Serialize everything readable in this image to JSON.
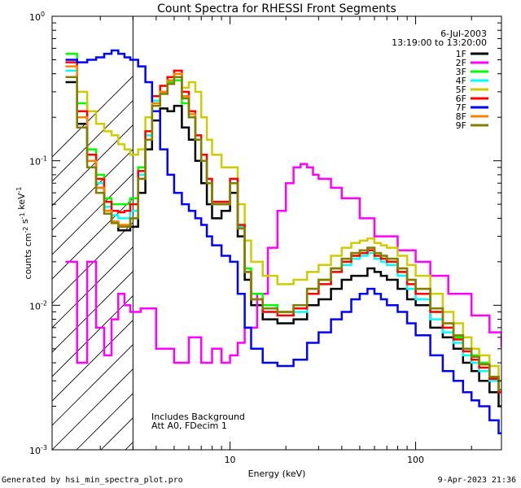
{
  "chart_data": {
    "type": "line",
    "title": "Count Spectra for RHESSI Front Segments",
    "xlabel": "Energy (keV)",
    "ylabel": "counts cm^-2 s^-1 keV^-1",
    "xscale": "log",
    "yscale": "log",
    "xlim": [
      1.1,
      290
    ],
    "ylim": [
      0.001,
      1
    ],
    "x_ticks": [
      {
        "value": 10,
        "label": "10"
      },
      {
        "value": 100,
        "label": "100"
      }
    ],
    "y_ticks": [
      {
        "value": 1,
        "base": "10",
        "exp": "0"
      },
      {
        "value": 0.1,
        "base": "10",
        "exp": "-1"
      },
      {
        "value": 0.01,
        "base": "10",
        "exp": "-2"
      },
      {
        "value": 0.001,
        "base": "10",
        "exp": "-3"
      }
    ],
    "date": "6-Jul-2003",
    "time_range": "13:19:00 to 13:20:00",
    "annotations": [
      "Includes Background",
      "Att A0, FDecim 1"
    ],
    "hatched_region_below_keV": 3,
    "series": [
      {
        "name": "1F",
        "color": "#000000",
        "x": [
          1.3,
          1.5,
          1.7,
          1.9,
          2.1,
          2.3,
          2.5,
          2.7,
          2.9,
          3.2,
          3.5,
          3.8,
          4.2,
          4.6,
          5.0,
          5.5,
          6.0,
          6.5,
          7.0,
          7.5,
          8.0,
          9.0,
          10,
          11,
          12,
          13,
          15,
          18,
          22,
          26,
          30,
          35,
          40,
          45,
          50,
          55,
          60,
          65,
          70,
          80,
          90,
          100,
          120,
          140,
          160,
          180,
          200,
          220,
          250,
          280
        ],
        "y": [
          0.35,
          0.18,
          0.1,
          0.065,
          0.045,
          0.038,
          0.033,
          0.033,
          0.035,
          0.06,
          0.12,
          0.19,
          0.23,
          0.22,
          0.24,
          0.17,
          0.14,
          0.1,
          0.07,
          0.05,
          0.04,
          0.045,
          0.06,
          0.03,
          0.015,
          0.01,
          0.008,
          0.0075,
          0.008,
          0.01,
          0.011,
          0.013,
          0.015,
          0.016,
          0.016,
          0.018,
          0.017,
          0.016,
          0.015,
          0.013,
          0.011,
          0.01,
          0.007,
          0.006,
          0.005,
          0.004,
          0.0035,
          0.003,
          0.0025,
          0.002
        ]
      },
      {
        "name": "2F",
        "color": "#ff00ff",
        "x": [
          1.3,
          1.5,
          1.7,
          1.9,
          2.1,
          2.3,
          2.5,
          2.7,
          2.9,
          3.3,
          4,
          5,
          6,
          7,
          8,
          9,
          10,
          11,
          12,
          14,
          16,
          18,
          20,
          22,
          24,
          26,
          28,
          30,
          35,
          40,
          50,
          60,
          80,
          100,
          120,
          150,
          200,
          250,
          290
        ],
        "y": [
          0.02,
          0.004,
          0.02,
          0.007,
          0.0045,
          0.008,
          0.012,
          0.01,
          0.009,
          0.0095,
          0.005,
          0.004,
          0.006,
          0.004,
          0.005,
          0.004,
          0.0045,
          0.0055,
          0.007,
          0.012,
          0.025,
          0.045,
          0.07,
          0.09,
          0.095,
          0.09,
          0.08,
          0.075,
          0.065,
          0.055,
          0.04,
          0.03,
          0.024,
          0.02,
          0.016,
          0.012,
          0.0085,
          0.0065,
          0.0052
        ]
      },
      {
        "name": "3F",
        "color": "#00ff00",
        "x": [
          1.3,
          1.5,
          1.7,
          1.9,
          2.1,
          2.3,
          2.5,
          2.7,
          2.9,
          3.2,
          3.5,
          3.8,
          4.2,
          4.6,
          5.0,
          5.5,
          6.0,
          6.5,
          7.0,
          7.5,
          8.0,
          9.0,
          10,
          11,
          12,
          13,
          15,
          18,
          22,
          26,
          30,
          35,
          40,
          45,
          50,
          55,
          60,
          65,
          70,
          80,
          90,
          100,
          120,
          140,
          160,
          180,
          200,
          220,
          250,
          280
        ],
        "y": [
          0.55,
          0.25,
          0.12,
          0.08,
          0.055,
          0.05,
          0.05,
          0.05,
          0.055,
          0.09,
          0.15,
          0.26,
          0.3,
          0.35,
          0.36,
          0.25,
          0.2,
          0.14,
          0.1,
          0.07,
          0.05,
          0.05,
          0.07,
          0.035,
          0.018,
          0.012,
          0.01,
          0.009,
          0.01,
          0.013,
          0.015,
          0.018,
          0.02,
          0.022,
          0.023,
          0.024,
          0.022,
          0.021,
          0.02,
          0.017,
          0.014,
          0.012,
          0.009,
          0.007,
          0.006,
          0.005,
          0.0045,
          0.004,
          0.003,
          0.0025
        ]
      },
      {
        "name": "4F",
        "color": "#00ffff",
        "x": [
          1.3,
          1.5,
          1.7,
          1.9,
          2.1,
          2.3,
          2.5,
          2.7,
          2.9,
          3.2,
          3.5,
          3.8,
          4.2,
          4.6,
          5.0,
          5.5,
          6.0,
          6.5,
          7.0,
          7.5,
          8.0,
          9.0,
          10,
          11,
          12,
          13,
          15,
          18,
          22,
          26,
          30,
          35,
          40,
          45,
          50,
          55,
          60,
          65,
          70,
          80,
          90,
          100,
          120,
          140,
          160,
          180,
          200,
          220,
          250,
          280
        ],
        "y": [
          0.42,
          0.2,
          0.1,
          0.07,
          0.048,
          0.042,
          0.04,
          0.04,
          0.045,
          0.08,
          0.15,
          0.26,
          0.3,
          0.34,
          0.38,
          0.27,
          0.2,
          0.14,
          0.1,
          0.07,
          0.05,
          0.05,
          0.07,
          0.035,
          0.017,
          0.011,
          0.009,
          0.0085,
          0.009,
          0.012,
          0.014,
          0.017,
          0.019,
          0.021,
          0.022,
          0.023,
          0.021,
          0.02,
          0.019,
          0.016,
          0.013,
          0.011,
          0.008,
          0.0065,
          0.0055,
          0.0045,
          0.004,
          0.0035,
          0.003,
          0.0025
        ]
      },
      {
        "name": "5F",
        "color": "#cccc00",
        "x": [
          1.3,
          1.5,
          1.7,
          1.9,
          2.1,
          2.3,
          2.5,
          2.7,
          2.9,
          3.2,
          3.5,
          3.8,
          4.2,
          4.6,
          5.0,
          5.5,
          6.0,
          6.5,
          7.0,
          7.5,
          8.0,
          9.0,
          10,
          11,
          12,
          13,
          15,
          18,
          22,
          26,
          30,
          35,
          40,
          45,
          50,
          55,
          60,
          65,
          70,
          80,
          90,
          100,
          120,
          140,
          160,
          180,
          200,
          220,
          250,
          280
        ],
        "y": [
          0.38,
          0.3,
          0.22,
          0.18,
          0.16,
          0.15,
          0.13,
          0.12,
          0.11,
          0.12,
          0.2,
          0.28,
          0.33,
          0.36,
          0.38,
          0.32,
          0.35,
          0.3,
          0.2,
          0.14,
          0.11,
          0.09,
          0.09,
          0.05,
          0.028,
          0.02,
          0.016,
          0.014,
          0.015,
          0.017,
          0.019,
          0.022,
          0.025,
          0.027,
          0.028,
          0.029,
          0.027,
          0.026,
          0.025,
          0.022,
          0.019,
          0.016,
          0.012,
          0.009,
          0.0075,
          0.006,
          0.005,
          0.0045,
          0.0038,
          0.003
        ]
      },
      {
        "name": "6F",
        "color": "#ff0000",
        "x": [
          1.3,
          1.5,
          1.7,
          1.9,
          2.1,
          2.3,
          2.5,
          2.7,
          2.9,
          3.2,
          3.5,
          3.8,
          4.2,
          4.6,
          5.0,
          5.5,
          6.0,
          6.5,
          7.0,
          7.5,
          8.0,
          9.0,
          10,
          11,
          12,
          13,
          15,
          18,
          22,
          26,
          30,
          35,
          40,
          45,
          50,
          55,
          60,
          65,
          70,
          80,
          90,
          100,
          120,
          140,
          160,
          180,
          200,
          220,
          250,
          280
        ],
        "y": [
          0.48,
          0.22,
          0.11,
          0.075,
          0.052,
          0.045,
          0.044,
          0.045,
          0.05,
          0.085,
          0.16,
          0.28,
          0.33,
          0.38,
          0.42,
          0.3,
          0.22,
          0.15,
          0.11,
          0.075,
          0.052,
          0.052,
          0.075,
          0.036,
          0.017,
          0.011,
          0.009,
          0.0085,
          0.0095,
          0.012,
          0.014,
          0.017,
          0.02,
          0.022,
          0.023,
          0.024,
          0.022,
          0.021,
          0.02,
          0.017,
          0.014,
          0.012,
          0.009,
          0.007,
          0.0058,
          0.0048,
          0.0042,
          0.0037,
          0.0031,
          0.0025
        ]
      },
      {
        "name": "7F",
        "color": "#0000ff",
        "x": [
          1.3,
          1.5,
          1.7,
          1.9,
          2.1,
          2.3,
          2.5,
          2.7,
          2.9,
          3.2,
          3.5,
          3.8,
          4.2,
          4.6,
          5.0,
          5.5,
          6.0,
          6.5,
          7.0,
          7.5,
          8.0,
          9.0,
          10,
          11,
          12,
          13,
          15,
          18,
          22,
          26,
          30,
          35,
          40,
          45,
          50,
          55,
          60,
          65,
          70,
          80,
          90,
          100,
          120,
          140,
          160,
          180,
          200,
          220,
          250,
          280
        ],
        "y": [
          0.5,
          0.48,
          0.5,
          0.52,
          0.55,
          0.58,
          0.55,
          0.52,
          0.5,
          0.45,
          0.35,
          0.22,
          0.12,
          0.08,
          0.06,
          0.05,
          0.045,
          0.04,
          0.036,
          0.03,
          0.026,
          0.022,
          0.02,
          0.012,
          0.007,
          0.005,
          0.004,
          0.0038,
          0.0042,
          0.0055,
          0.0065,
          0.008,
          0.009,
          0.011,
          0.012,
          0.013,
          0.012,
          0.011,
          0.01,
          0.009,
          0.0075,
          0.0062,
          0.0045,
          0.0035,
          0.003,
          0.0025,
          0.0022,
          0.002,
          0.0016,
          0.0013
        ]
      },
      {
        "name": "8F",
        "color": "#ff8000",
        "x": [
          1.3,
          1.5,
          1.7,
          1.9,
          2.1,
          2.3,
          2.5,
          2.7,
          2.9,
          3.2,
          3.5,
          3.8,
          4.2,
          4.6,
          5.0,
          5.5,
          6.0,
          6.5,
          7.0,
          7.5,
          8.0,
          9.0,
          10,
          11,
          12,
          13,
          15,
          18,
          22,
          26,
          30,
          35,
          40,
          45,
          50,
          55,
          60,
          65,
          70,
          80,
          90,
          100,
          120,
          140,
          160,
          180,
          200,
          220,
          250,
          280
        ],
        "y": [
          0.45,
          0.2,
          0.1,
          0.065,
          0.045,
          0.038,
          0.036,
          0.036,
          0.04,
          0.075,
          0.14,
          0.25,
          0.3,
          0.36,
          0.4,
          0.28,
          0.21,
          0.14,
          0.1,
          0.07,
          0.05,
          0.05,
          0.07,
          0.034,
          0.017,
          0.011,
          0.0095,
          0.009,
          0.01,
          0.013,
          0.015,
          0.018,
          0.021,
          0.023,
          0.024,
          0.025,
          0.023,
          0.022,
          0.021,
          0.018,
          0.015,
          0.013,
          0.0095,
          0.0075,
          0.0062,
          0.005,
          0.0044,
          0.0039,
          0.0032,
          0.0026
        ]
      },
      {
        "name": "9F",
        "color": "#808000",
        "x": [
          1.3,
          1.5,
          1.7,
          1.9,
          2.1,
          2.3,
          2.5,
          2.7,
          2.9,
          3.2,
          3.5,
          3.8,
          4.2,
          4.6,
          5.0,
          5.5,
          6.0,
          6.5,
          7.0,
          7.5,
          8.0,
          9.0,
          10,
          11,
          12,
          13,
          15,
          18,
          22,
          26,
          30,
          35,
          40,
          45,
          50,
          55,
          60,
          65,
          70,
          80,
          90,
          100,
          120,
          140,
          160,
          180,
          200,
          220,
          250,
          280
        ],
        "y": [
          0.38,
          0.17,
          0.09,
          0.06,
          0.043,
          0.037,
          0.035,
          0.035,
          0.04,
          0.075,
          0.14,
          0.24,
          0.29,
          0.34,
          0.38,
          0.27,
          0.2,
          0.14,
          0.1,
          0.07,
          0.05,
          0.05,
          0.07,
          0.034,
          0.017,
          0.011,
          0.0095,
          0.009,
          0.01,
          0.013,
          0.015,
          0.018,
          0.021,
          0.023,
          0.024,
          0.025,
          0.023,
          0.022,
          0.021,
          0.018,
          0.015,
          0.013,
          0.0095,
          0.0075,
          0.0062,
          0.005,
          0.0044,
          0.0039,
          0.0032,
          0.0026
        ]
      }
    ]
  },
  "footer": {
    "left": "Generated by hsi_min_spectra_plot.pro",
    "right": "9-Apr-2023 21:36"
  }
}
